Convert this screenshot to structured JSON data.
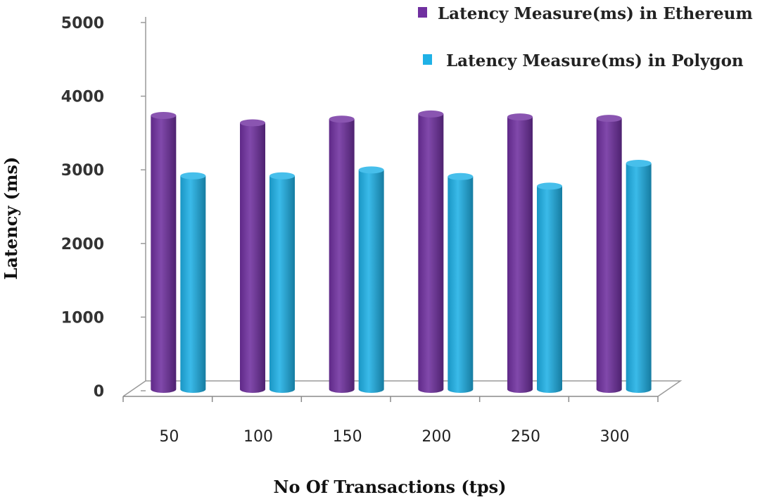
{
  "chart_data": {
    "type": "bar",
    "title": "",
    "xlabel": "No Of Transactions (tps)",
    "ylabel": "Latency (ms)",
    "categories": [
      "50",
      "100",
      "150",
      "200",
      "250",
      "300"
    ],
    "ylim": [
      0,
      5000
    ],
    "yticks": [
      "0",
      "1000",
      "2000",
      "3000",
      "4000",
      "5000"
    ],
    "grid": false,
    "legend_position": "top-right",
    "style": "3d-cylinder",
    "series": [
      {
        "name": "Latency Measure(ms) in Ethereum",
        "color": "#7030A0",
        "values": [
          3700,
          3600,
          3650,
          3720,
          3680,
          3660
        ]
      },
      {
        "name": "Latency Measure(ms) in Polygon",
        "color": "#1FB1E6",
        "values": [
          2880,
          2880,
          2960,
          2870,
          2740,
          3050
        ]
      }
    ]
  }
}
